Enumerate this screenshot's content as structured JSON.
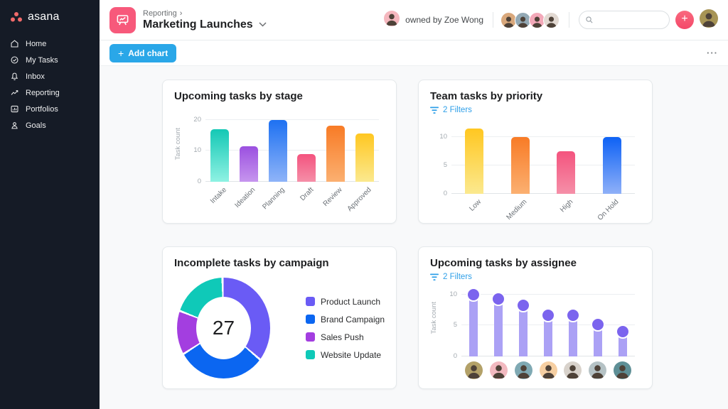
{
  "app": {
    "logo_text": "asana",
    "logo_color": "#F06A6A",
    "sidebar_bg": "#151B26"
  },
  "sidebar": {
    "items": [
      {
        "label": "Home",
        "icon": "home-icon"
      },
      {
        "label": "My Tasks",
        "icon": "check-circle-icon"
      },
      {
        "label": "Inbox",
        "icon": "bell-icon"
      },
      {
        "label": "Reporting",
        "icon": "trend-line-icon"
      },
      {
        "label": "Portfolios",
        "icon": "portfolio-icon"
      },
      {
        "label": "Goals",
        "icon": "person-icon"
      }
    ]
  },
  "header": {
    "breadcrumb": "Reporting",
    "breadcrumb_separator": "›",
    "title": "Marketing Launches",
    "owned_by": "owned by Zoe Wong",
    "owner_avatar_color": "#F5B7BE",
    "member_avatar_colors": [
      "#D9A87C",
      "#93A9B5",
      "#F3A9B9",
      "#E2D9D2"
    ],
    "user_avatar_color": "#A79455"
  },
  "toolbar": {
    "add_chart": {
      "icon": "+",
      "label": "Add chart"
    },
    "more_label": "···"
  },
  "chart_data": [
    {
      "type": "bar",
      "title": "Upcoming tasks by stage",
      "categories": [
        "Intake",
        "Ideation",
        "Planning",
        "Draft",
        "Review",
        "Approved"
      ],
      "values": [
        17,
        11.5,
        20,
        9,
        18,
        15.5
      ],
      "ylabel": "Task count",
      "yticks": [
        0,
        10,
        20
      ],
      "ylim": [
        0,
        22
      ],
      "grid": true,
      "bar_colors": [
        [
          "#14C8B5",
          "#8FF2E3"
        ],
        [
          "#9B50E0",
          "#C695EE"
        ],
        [
          "#1E71F2",
          "#8FB4F8"
        ],
        [
          "#F4537E",
          "#F58FA8"
        ],
        [
          "#F87B26",
          "#FBB071"
        ],
        [
          "#FFC721",
          "#FBE98F"
        ]
      ]
    },
    {
      "type": "bar",
      "title": "Team tasks by priority",
      "filters_label": "2 Filters",
      "categories": [
        "Low",
        "Medium",
        "High",
        "On Hold"
      ],
      "values": [
        11.5,
        10,
        7.5,
        10
      ],
      "ylabel": "",
      "yticks": [
        0,
        5,
        10
      ],
      "ylim": [
        0,
        12.5
      ],
      "grid": true,
      "bar_colors": [
        [
          "#FFC721",
          "#FBE98F"
        ],
        [
          "#F87B26",
          "#FBB071"
        ],
        [
          "#F4537E",
          "#F58FA8"
        ],
        [
          "#0E62F5",
          "#8FB0F8"
        ]
      ]
    },
    {
      "type": "pie",
      "title": "Incomplete tasks by campaign",
      "total_label": "27",
      "legend_position": "right",
      "slices": [
        {
          "label": "Product Launch",
          "value": 10,
          "color": "#6A5BF5"
        },
        {
          "label": "Brand Campaign",
          "value": 8,
          "color": "#0B66F1"
        },
        {
          "label": "Sales Push",
          "value": 4,
          "color": "#A33EE0"
        },
        {
          "label": "Website Update",
          "value": 5,
          "color": "#0FC9B8"
        }
      ]
    },
    {
      "type": "bar",
      "subtype": "lollipop",
      "title": "Upcoming tasks by assignee",
      "filters_label": "2 Filters",
      "categories": [
        "assignee-1",
        "assignee-2",
        "assignee-3",
        "assignee-4",
        "assignee-5",
        "assignee-6",
        "assignee-7"
      ],
      "values": [
        10,
        9.3,
        8.2,
        6.6,
        6.6,
        5.1,
        4
      ],
      "ylabel": "Task count",
      "yticks": [
        0,
        5,
        10
      ],
      "ylim": [
        0,
        11.2
      ],
      "grid": true,
      "stem_color": "#ABA1F5",
      "dot_color": "#7B64EE",
      "avatar_colors": [
        "#B3A168",
        "#F2B9C0",
        "#7FA9B3",
        "#F6CFA2",
        "#D8D2CB",
        "#B5C2C5",
        "#5E8F96"
      ]
    }
  ]
}
